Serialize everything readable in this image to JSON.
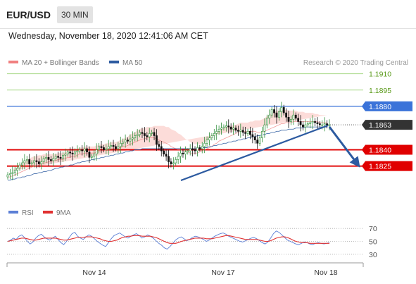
{
  "header": {
    "symbol": "EUR/USD",
    "timeframe": "30 MIN"
  },
  "timestamp": "Wednesday, November 18, 2020 12:41:06 AM CET",
  "legend": {
    "bollinger": "MA 20 + Bollinger Bands",
    "ma50": "MA 50",
    "rsi": "RSI",
    "rsi_ma": "9MA"
  },
  "credit": "Research © 2020 Trading Central",
  "colors": {
    "bollinger": "#f08080",
    "ma50": "#2c5aa0",
    "up": "#2f8f3a",
    "resistance_blue": "#3b73d9",
    "support_red": "#e00000",
    "green_level": "#a9d98a",
    "rsi": "#5b7fd6",
    "rsi_ma": "#e03030",
    "current_price": "#333333"
  },
  "chart_data": [
    {
      "type": "candlestick",
      "title": "EUR/USD 30 MIN",
      "x_ticks": [
        "Nov 14",
        "Nov 17",
        "Nov 18"
      ],
      "ylim": [
        1.1793,
        1.1913
      ],
      "levels": [
        {
          "label": "1.1910",
          "value": 1.191,
          "kind": "target",
          "color": "#5a9a1a"
        },
        {
          "label": "1.1895",
          "value": 1.1895,
          "kind": "target",
          "color": "#5a9a1a"
        },
        {
          "label": "1.1880",
          "value": 1.188,
          "kind": "resistance",
          "color": "#3b73d9"
        },
        {
          "label": "1.1863",
          "value": 1.1863,
          "kind": "current",
          "color": "#333333"
        },
        {
          "label": "1.1840",
          "value": 1.184,
          "kind": "support",
          "color": "#e00000"
        },
        {
          "label": "1.1825",
          "value": 1.1825,
          "kind": "support",
          "color": "#e00000"
        }
      ],
      "close": [
        1.1817,
        1.1818,
        1.1819,
        1.1821,
        1.1823,
        1.1826,
        1.1828,
        1.183,
        1.1831,
        1.1827,
        1.1828,
        1.183,
        1.1829,
        1.1827,
        1.1829,
        1.1832,
        1.1833,
        1.1831,
        1.183,
        1.1832,
        1.1834,
        1.1833,
        1.1832,
        1.1835,
        1.1836,
        1.1838,
        1.1837,
        1.1836,
        1.1838,
        1.1839,
        1.184,
        1.1839,
        1.1841,
        1.1838,
        1.1833,
        1.1834,
        1.1836,
        1.184,
        1.1843,
        1.1842,
        1.184,
        1.1841,
        1.1843,
        1.1844,
        1.1843,
        1.1841,
        1.1843,
        1.1846,
        1.1847,
        1.1849,
        1.1848,
        1.185,
        1.1851,
        1.1853,
        1.1854,
        1.1856,
        1.1855,
        1.1853,
        1.1852,
        1.1855,
        1.1856,
        1.1853,
        1.1845,
        1.1843,
        1.1839,
        1.1836,
        1.1834,
        1.1829,
        1.1827,
        1.1828,
        1.1831,
        1.1834,
        1.1837,
        1.1836,
        1.1838,
        1.1839,
        1.1841,
        1.184,
        1.1839,
        1.1842,
        1.1841,
        1.1843,
        1.1846,
        1.1849,
        1.1851,
        1.1853,
        1.1855,
        1.1857,
        1.1859,
        1.186,
        1.1861,
        1.1862,
        1.1861,
        1.1859,
        1.186,
        1.1858,
        1.1857,
        1.1858,
        1.1856,
        1.1855,
        1.1857,
        1.1854,
        1.1852,
        1.1849,
        1.1846,
        1.1851,
        1.1857,
        1.1863,
        1.1869,
        1.1872,
        1.1877,
        1.1874,
        1.187,
        1.1875,
        1.1879,
        1.1874,
        1.187,
        1.1866,
        1.1868,
        1.1872,
        1.1869,
        1.1866,
        1.1863,
        1.1861,
        1.1863,
        1.1864,
        1.1865,
        1.1866,
        1.1865,
        1.1864,
        1.1863,
        1.1863,
        1.1864,
        1.1863,
        1.1863
      ],
      "ma20": [
        1.1815,
        1.1815,
        1.1816,
        1.1817,
        1.1818,
        1.1819,
        1.182,
        1.1821,
        1.1822,
        1.1823,
        1.1824,
        1.1825,
        1.1825,
        1.1826,
        1.1827,
        1.1828,
        1.1828,
        1.1829,
        1.1829,
        1.183,
        1.183,
        1.1831,
        1.1831,
        1.1831,
        1.1832,
        1.1833,
        1.1833,
        1.1834,
        1.1834,
        1.1835,
        1.1836,
        1.1836,
        1.1837,
        1.1837,
        1.1837,
        1.1837,
        1.1837,
        1.1838,
        1.1838,
        1.1839,
        1.1839,
        1.184,
        1.184,
        1.1841,
        1.1841,
        1.1841,
        1.1842,
        1.1842,
        1.1843,
        1.1843,
        1.1844,
        1.1845,
        1.1846,
        1.1847,
        1.1848,
        1.1849,
        1.185,
        1.185,
        1.1851,
        1.1851,
        1.1851,
        1.1851,
        1.185,
        1.1849,
        1.1848,
        1.1847,
        1.1846,
        1.1845,
        1.1843,
        1.1842,
        1.1841,
        1.184,
        1.184,
        1.1839,
        1.1838,
        1.1838,
        1.1837,
        1.1837,
        1.1837,
        1.1837,
        1.1838,
        1.1839,
        1.184,
        1.1841,
        1.1842,
        1.1843,
        1.1845,
        1.1846,
        1.1848,
        1.1849,
        1.185,
        1.1851,
        1.1852,
        1.1853,
        1.1854,
        1.1855,
        1.1856,
        1.1857,
        1.1857,
        1.1857,
        1.1857,
        1.1857,
        1.1857,
        1.1857,
        1.1856,
        1.1856,
        1.1856,
        1.1857,
        1.1858,
        1.1859,
        1.186,
        1.1861,
        1.1862,
        1.1863,
        1.1864,
        1.1864,
        1.1865,
        1.1865,
        1.1865,
        1.1866,
        1.1866,
        1.1866,
        1.1866,
        1.1866,
        1.1866,
        1.1866,
        1.1866,
        1.1866,
        1.1866,
        1.1866,
        1.1865,
        1.1865,
        1.1865,
        1.1865
      ],
      "bb_halfwidth": [
        0.0005,
        0.0005,
        0.0005,
        0.0006,
        0.0006,
        0.0007,
        0.0008,
        0.0008,
        0.0009,
        0.0009,
        0.0009,
        0.0009,
        0.0009,
        0.0009,
        0.0008,
        0.0008,
        0.0008,
        0.0007,
        0.0007,
        0.0006,
        0.0006,
        0.0006,
        0.0006,
        0.0006,
        0.0006,
        0.0006,
        0.0006,
        0.0006,
        0.0006,
        0.0006,
        0.0006,
        0.0006,
        0.0006,
        0.0006,
        0.0006,
        0.0006,
        0.0006,
        0.0006,
        0.0006,
        0.0006,
        0.0006,
        0.0006,
        0.0006,
        0.0006,
        0.0006,
        0.0006,
        0.0006,
        0.0007,
        0.0007,
        0.0008,
        0.0008,
        0.0009,
        0.0009,
        0.0009,
        0.001,
        0.001,
        0.001,
        0.001,
        0.001,
        0.001,
        0.001,
        0.0011,
        0.0012,
        0.0013,
        0.0014,
        0.0015,
        0.0015,
        0.0016,
        0.0016,
        0.0016,
        0.0016,
        0.0015,
        0.0014,
        0.0013,
        0.0012,
        0.0011,
        0.001,
        0.0009,
        0.0008,
        0.0008,
        0.0007,
        0.0007,
        0.0007,
        0.0007,
        0.0008,
        0.0008,
        0.0009,
        0.0009,
        0.001,
        0.001,
        0.001,
        0.001,
        0.001,
        0.0009,
        0.0009,
        0.0008,
        0.0008,
        0.0008,
        0.0008,
        0.0008,
        0.0008,
        0.0009,
        0.0009,
        0.001,
        0.0011,
        0.0011,
        0.0012,
        0.0012,
        0.0013,
        0.0013,
        0.0014,
        0.0014,
        0.0014,
        0.0013,
        0.0013,
        0.0012,
        0.0012,
        0.0011,
        0.0011,
        0.001,
        0.001,
        0.0009,
        0.0009,
        0.0009,
        0.0008,
        0.0008,
        0.0008,
        0.0008,
        0.0007,
        0.0007,
        0.0007,
        0.0007,
        0.0007,
        0.0007
      ],
      "ma50": [
        1.1812,
        1.1812,
        1.1813,
        1.1813,
        1.1814,
        1.1814,
        1.1815,
        1.1815,
        1.1816,
        1.1816,
        1.1817,
        1.1818,
        1.1818,
        1.1819,
        1.1819,
        1.182,
        1.182,
        1.1821,
        1.1821,
        1.1822,
        1.1823,
        1.1823,
        1.1824,
        1.1824,
        1.1825,
        1.1825,
        1.1826,
        1.1826,
        1.1827,
        1.1828,
        1.1828,
        1.1829,
        1.1829,
        1.183,
        1.183,
        1.1831,
        1.1831,
        1.1832,
        1.1832,
        1.1833,
        1.1833,
        1.1834,
        1.1834,
        1.1835,
        1.1835,
        1.1836,
        1.1836,
        1.1837,
        1.1837,
        1.1838,
        1.1838,
        1.1839,
        1.1839,
        1.184,
        1.184,
        1.184,
        1.1841,
        1.1841,
        1.1841,
        1.1841,
        1.1841,
        1.1841,
        1.1841,
        1.1841,
        1.1841,
        1.1841,
        1.1841,
        1.1841,
        1.1841,
        1.1841,
        1.1841,
        1.1841,
        1.1841,
        1.1841,
        1.1841,
        1.1841,
        1.1841,
        1.1841,
        1.1841,
        1.1841,
        1.1841,
        1.1842,
        1.1842,
        1.1842,
        1.1843,
        1.1843,
        1.1844,
        1.1844,
        1.1845,
        1.1845,
        1.1846,
        1.1846,
        1.1847,
        1.1847,
        1.1848,
        1.1848,
        1.1849,
        1.1849,
        1.185,
        1.185,
        1.1851,
        1.1851,
        1.1852,
        1.1852,
        1.1853,
        1.1853,
        1.1854,
        1.1854,
        1.1855,
        1.1855,
        1.1856,
        1.1856,
        1.1857,
        1.1857,
        1.1858,
        1.1858,
        1.1858,
        1.1859,
        1.1859,
        1.1859,
        1.186,
        1.186,
        1.186,
        1.186,
        1.1861,
        1.1861,
        1.1861,
        1.1861,
        1.1861,
        1.1861,
        1.1861,
        1.1861,
        1.1861,
        1.1861
      ]
    },
    {
      "type": "line",
      "title": "RSI",
      "ylim": [
        20,
        80
      ],
      "y_ticks": [
        "70",
        "50",
        "30"
      ],
      "series": [
        {
          "name": "RSI",
          "color": "#5b7fd6",
          "values": [
            50,
            52,
            55,
            53,
            58,
            60,
            56,
            50,
            46,
            49,
            55,
            59,
            61,
            57,
            54,
            52,
            55,
            58,
            53,
            48,
            45,
            50,
            56,
            62,
            64,
            58,
            55,
            53,
            57,
            60,
            58,
            54,
            50,
            47,
            44,
            42,
            48,
            54,
            59,
            61,
            63,
            60,
            57,
            55,
            58,
            60,
            62,
            59,
            55,
            57,
            60,
            58,
            55,
            51,
            47,
            44,
            40,
            38,
            42,
            47,
            52,
            55,
            57,
            54,
            51,
            53,
            56,
            58,
            57,
            55,
            53,
            50,
            52,
            55,
            58,
            60,
            62,
            63,
            61,
            58,
            56,
            54,
            52,
            50,
            49,
            51,
            53,
            55,
            56,
            54,
            51,
            48,
            46,
            49,
            55,
            62,
            66,
            64,
            60,
            56,
            52,
            50,
            48,
            46,
            45,
            47,
            49,
            48,
            46,
            45,
            47,
            48,
            47,
            46,
            47,
            48
          ]
        },
        {
          "name": "9MA",
          "color": "#e03030",
          "values": [
            50,
            51,
            52,
            53,
            54,
            55,
            55,
            54,
            53,
            52,
            52,
            53,
            54,
            55,
            55,
            55,
            55,
            55,
            54,
            53,
            52,
            52,
            53,
            54,
            55,
            56,
            56,
            56,
            57,
            57,
            57,
            56,
            55,
            54,
            52,
            51,
            50,
            50,
            51,
            52,
            54,
            56,
            57,
            58,
            58,
            59,
            59,
            59,
            58,
            58,
            58,
            58,
            57,
            56,
            54,
            52,
            50,
            48,
            47,
            47,
            47,
            48,
            50,
            51,
            52,
            53,
            54,
            55,
            55,
            55,
            55,
            54,
            54,
            54,
            55,
            56,
            57,
            58,
            59,
            59,
            58,
            57,
            56,
            55,
            54,
            53,
            53,
            53,
            53,
            53,
            52,
            51,
            50,
            50,
            51,
            53,
            55,
            56,
            57,
            57,
            56,
            54,
            52,
            50,
            49,
            48,
            48,
            48,
            47,
            47,
            47,
            47,
            47,
            47,
            47,
            47
          ]
        }
      ]
    }
  ]
}
